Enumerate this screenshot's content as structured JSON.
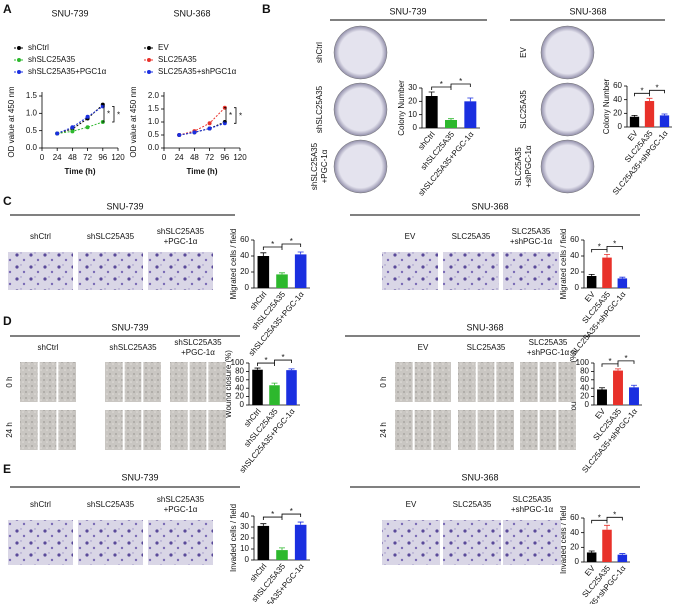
{
  "panel_labels": [
    "A",
    "B",
    "C",
    "D",
    "E"
  ],
  "chart_data": [
    {
      "type": "line",
      "title": "SNU-739",
      "x_label": "Time (h)",
      "y_label": "OD value at 450 nm",
      "x": [
        24,
        48,
        72,
        96
      ],
      "xlim": [
        0,
        120
      ],
      "xticks": [
        0,
        24,
        48,
        72,
        96,
        120
      ],
      "ylim": [
        0,
        1.5
      ],
      "yticks": [
        {
          "value": 0,
          "label": "0.0"
        },
        {
          "value": 0.5,
          "label": "0.5"
        },
        {
          "value": 1,
          "label": "1.0"
        },
        {
          "value": 1.5,
          "label": "1.5"
        }
      ],
      "series": [
        {
          "name": "shCtrl",
          "color": "#000000",
          "values": [
            0.42,
            0.55,
            0.85,
            1.25
          ]
        },
        {
          "name": "shSLC25A35",
          "color": "#2db82d",
          "values": [
            0.42,
            0.48,
            0.6,
            0.75
          ]
        },
        {
          "name": "shSLC25A35+PGC1α",
          "color": "#1a2fe0",
          "values": [
            0.42,
            0.6,
            0.9,
            1.2
          ]
        }
      ],
      "annotations": [
        "*",
        "*"
      ]
    },
    {
      "type": "line",
      "title": "SNU-368",
      "x_label": "Time (h)",
      "y_label": "OD value at 450 nm",
      "x": [
        24,
        48,
        72,
        96
      ],
      "xlim": [
        0,
        120
      ],
      "xticks": [
        0,
        24,
        48,
        72,
        96,
        120
      ],
      "ylim": [
        0,
        2
      ],
      "yticks": [
        {
          "value": 0,
          "label": "0.0"
        },
        {
          "value": 0.5,
          "label": "0.5"
        },
        {
          "value": 1,
          "label": "1.0"
        },
        {
          "value": 1.5,
          "label": "1.5"
        },
        {
          "value": 2,
          "label": "2.0"
        }
      ],
      "series": [
        {
          "name": "EV",
          "color": "#000000",
          "values": [
            0.5,
            0.6,
            0.75,
            1.0
          ]
        },
        {
          "name": "SLC25A35",
          "color": "#e8312a",
          "values": [
            0.5,
            0.65,
            0.95,
            1.55
          ]
        },
        {
          "name": "SLC25A35+shPGC1α",
          "color": "#1a2fe0",
          "values": [
            0.5,
            0.6,
            0.75,
            0.95
          ]
        }
      ],
      "annotations": [
        "*",
        "*"
      ]
    },
    {
      "type": "bar",
      "y_label": "Colony Number",
      "categories": [
        "shCtrl",
        "shSLC25A35",
        "shSLC25A35+PGC-1α"
      ],
      "values": [
        24,
        6,
        20
      ],
      "errors": [
        3,
        1,
        2.5
      ],
      "colors": [
        "#000000",
        "#2db82d",
        "#1a2fe0"
      ],
      "ylim": [
        0,
        30
      ],
      "yticks": [
        0,
        10,
        20,
        30
      ],
      "annotations": [
        "*",
        "*"
      ]
    },
    {
      "type": "bar",
      "y_label": "Colony Number",
      "categories": [
        "EV",
        "SLC25A35",
        "SLC25A35+shPGC-1α"
      ],
      "values": [
        15,
        38,
        17
      ],
      "errors": [
        2,
        4,
        2
      ],
      "colors": [
        "#000000",
        "#e8312a",
        "#1a2fe0"
      ],
      "ylim": [
        0,
        60
      ],
      "yticks": [
        0,
        20,
        40,
        60
      ],
      "annotations": [
        "*",
        "*"
      ]
    },
    {
      "type": "bar",
      "y_label": "Migrated cells / field",
      "categories": [
        "shCtrl",
        "shSLC25A35",
        "shSLC25A35+PGC-1α"
      ],
      "values": [
        40,
        17,
        42
      ],
      "errors": [
        4,
        2,
        3
      ],
      "colors": [
        "#000000",
        "#2db82d",
        "#1a2fe0"
      ],
      "ylim": [
        0,
        60
      ],
      "yticks": [
        0,
        20,
        40,
        60
      ],
      "annotations": [
        "*",
        "*"
      ]
    },
    {
      "type": "bar",
      "y_label": "Migrated cells / field",
      "categories": [
        "EV",
        "SLC25A35",
        "SLC25A35+shPGC-1α"
      ],
      "values": [
        15,
        38,
        12
      ],
      "errors": [
        2,
        4,
        1.5
      ],
      "colors": [
        "#000000",
        "#e8312a",
        "#1a2fe0"
      ],
      "ylim": [
        0,
        60
      ],
      "yticks": [
        0,
        20,
        40,
        60
      ],
      "annotations": [
        "*",
        "*"
      ]
    },
    {
      "type": "bar",
      "y_label": "Wound closure (%)",
      "categories": [
        "shCtrl",
        "shSLC25A35",
        "shSLC25A35+PGC-1α"
      ],
      "values": [
        84,
        47,
        83
      ],
      "errors": [
        4,
        5,
        3
      ],
      "colors": [
        "#000000",
        "#2db82d",
        "#1a2fe0"
      ],
      "ylim": [
        0,
        100
      ],
      "yticks": [
        0,
        20,
        40,
        60,
        80,
        100
      ],
      "annotations": [
        "*",
        "*"
      ]
    },
    {
      "type": "bar",
      "y_label": "Wound closure (%)",
      "categories": [
        "EV",
        "SLC25A35",
        "SLC25A35+shPGC-1α"
      ],
      "values": [
        37,
        82,
        42
      ],
      "errors": [
        4,
        4,
        5
      ],
      "colors": [
        "#000000",
        "#e8312a",
        "#1a2fe0"
      ],
      "ylim": [
        0,
        100
      ],
      "yticks": [
        0,
        20,
        40,
        60,
        80,
        100
      ],
      "annotations": [
        "*",
        "*"
      ]
    },
    {
      "type": "bar",
      "y_label": "Invaded cells / field",
      "categories": [
        "shCtrl",
        "shSLC25A35",
        "shSLC25A35+PGC-1α"
      ],
      "values": [
        31,
        9,
        32
      ],
      "errors": [
        2,
        2,
        2.5
      ],
      "colors": [
        "#000000",
        "#2db82d",
        "#1a2fe0"
      ],
      "ylim": [
        0,
        40
      ],
      "yticks": [
        0,
        10,
        20,
        30,
        40
      ],
      "annotations": [
        "*",
        "*"
      ]
    },
    {
      "type": "bar",
      "y_label": "Invaded cells / field",
      "categories": [
        "EV",
        "SLC25A35",
        "SLC25A35+shPGC-1α"
      ],
      "values": [
        13,
        44,
        10
      ],
      "errors": [
        2,
        6,
        1.5
      ],
      "colors": [
        "#000000",
        "#e8312a",
        "#1a2fe0"
      ],
      "ylim": [
        0,
        60
      ],
      "yticks": [
        0,
        20,
        40,
        60
      ],
      "annotations": [
        "*",
        "*"
      ]
    }
  ],
  "image_groups": [
    {
      "title": "SNU-739",
      "labels": [
        [
          "shCtrl"
        ],
        [
          "shSLC25A35"
        ],
        [
          "shSLC25A35",
          "+PGC-1α"
        ]
      ]
    },
    {
      "title": "SNU-368",
      "labels": [
        [
          "EV"
        ],
        [
          "SLC25A35"
        ],
        [
          "SLC25A35",
          "+shPGC-1α"
        ]
      ]
    },
    {
      "title": "SNU-739",
      "labels": [
        [
          "shCtrl"
        ],
        [
          "shSLC25A35"
        ],
        [
          "shSLC25A35",
          "+PGC-1α"
        ]
      ]
    },
    {
      "title": "SNU-368",
      "labels": [
        [
          "EV"
        ],
        [
          "SLC25A35"
        ],
        [
          "SLC25A35",
          "+shPGC-1α"
        ]
      ]
    },
    {
      "title": "SNU-739",
      "labels": [
        [
          "shCtrl"
        ],
        [
          "shSLC25A35"
        ],
        [
          "shSLC25A35",
          "+PGC-1α"
        ]
      ],
      "row_labels": [
        "0 h",
        "24 h"
      ]
    },
    {
      "title": "SNU-368",
      "labels": [
        [
          "EV"
        ],
        [
          "SLC25A35"
        ],
        [
          "SLC25A35",
          "+shPGC-1α"
        ]
      ],
      "row_labels": [
        "0 h",
        "24 h"
      ]
    },
    {
      "title": "SNU-739",
      "labels": [
        [
          "shCtrl"
        ],
        [
          "shSLC25A35"
        ],
        [
          "shSLC25A35",
          "+PGC-1α"
        ]
      ]
    },
    {
      "title": "SNU-368",
      "labels": [
        [
          "EV"
        ],
        [
          "SLC25A35"
        ],
        [
          "SLC25A35",
          "+shPGC-1α"
        ]
      ]
    }
  ]
}
